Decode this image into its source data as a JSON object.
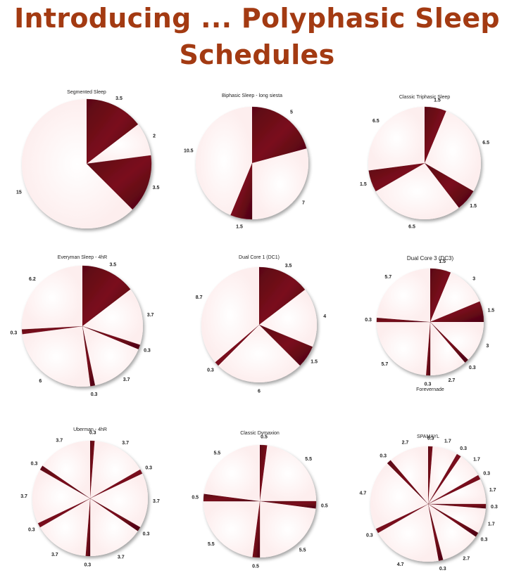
{
  "page": {
    "title": "Introducing ... Polyphasic Sleep Schedules"
  },
  "colors": {
    "title": "#a33a12",
    "sleep": "#7a0a1c",
    "awake": "#fdeeee"
  },
  "chart_data": [
    {
      "type": "pie",
      "title": "Segmented Sleep",
      "values": [
        3.5,
        2,
        3.5,
        15
      ],
      "labels": [
        "3.5",
        "2",
        "3.5",
        "15"
      ],
      "kinds": [
        "sleep",
        "awake",
        "sleep",
        "awake"
      ]
    },
    {
      "type": "pie",
      "title": "Biphasic Sleep - long siesta",
      "values": [
        5,
        7,
        1.5,
        10.5
      ],
      "labels": [
        "5",
        "7",
        "1.5",
        "10.5"
      ],
      "kinds": [
        "sleep",
        "awake",
        "sleep",
        "awake"
      ]
    },
    {
      "type": "pie",
      "title": "Classic Triphasic Sleep",
      "values": [
        1.5,
        6.5,
        1.5,
        6.5,
        1.5,
        6.5
      ],
      "labels": [
        "1.5",
        "6.5",
        "1.5",
        "6.5",
        "1.5",
        "6.5"
      ],
      "kinds": [
        "sleep",
        "awake",
        "sleep",
        "awake",
        "sleep",
        "awake"
      ]
    },
    {
      "type": "pie",
      "title": "Everyman Sleep - 4hR",
      "values": [
        3.5,
        3.7,
        0.3,
        3.7,
        0.3,
        6,
        0.3,
        6.2
      ],
      "labels": [
        "3.5",
        "3.7",
        "0.3",
        "3.7",
        "0.3",
        "6",
        "0.3",
        "6.2"
      ],
      "kinds": [
        "sleep",
        "awake",
        "sleep",
        "awake",
        "sleep",
        "awake",
        "sleep",
        "awake"
      ]
    },
    {
      "type": "pie",
      "title": "Dual Core 1 (DC1)",
      "values": [
        3.5,
        4,
        1.5,
        6,
        0.3,
        8.7
      ],
      "labels": [
        "3.5",
        "4",
        "1.5",
        "6",
        "0.3",
        "8.7"
      ],
      "kinds": [
        "sleep",
        "awake",
        "sleep",
        "awake",
        "sleep",
        "awake"
      ]
    },
    {
      "type": "pie",
      "title": "Dual Core 3 (DC3)",
      "note": "Forevernade",
      "values": [
        1.5,
        3,
        1.5,
        3,
        0.3,
        2.7,
        0.3,
        5.7,
        0.3,
        5.7
      ],
      "labels": [
        "1.5",
        "3",
        "1.5",
        "3",
        "0.3",
        "2.7",
        "0.3",
        "5.7",
        "0.3",
        "5.7"
      ],
      "kinds": [
        "sleep",
        "awake",
        "sleep",
        "awake",
        "sleep",
        "awake",
        "sleep",
        "awake",
        "sleep",
        "awake"
      ]
    },
    {
      "type": "pie",
      "title": "Uberman - 4hR",
      "values": [
        0.3,
        3.7,
        0.3,
        3.7,
        0.3,
        3.7,
        0.3,
        3.7,
        0.3,
        3.7,
        0.3,
        3.7
      ],
      "labels": [
        "0.3",
        "3.7",
        "0.3",
        "3.7",
        "0.3",
        "3.7",
        "0.3",
        "3.7",
        "0.3",
        "3.7",
        "0.3",
        "3.7"
      ],
      "kinds": [
        "sleep",
        "awake",
        "sleep",
        "awake",
        "sleep",
        "awake",
        "sleep",
        "awake",
        "sleep",
        "awake",
        "sleep",
        "awake"
      ]
    },
    {
      "type": "pie",
      "title": "Classic Dymaxion",
      "values": [
        0.5,
        5.5,
        0.5,
        5.5,
        0.5,
        5.5,
        0.5,
        5.5
      ],
      "labels": [
        "0.5",
        "5.5",
        "0.5",
        "5.5",
        "0.5",
        "5.5",
        "0.5",
        "5.5"
      ],
      "kinds": [
        "sleep",
        "awake",
        "sleep",
        "awake",
        "sleep",
        "awake",
        "sleep",
        "awake"
      ]
    },
    {
      "type": "pie",
      "title": "SPAMAYL",
      "values": [
        0.3,
        1.7,
        0.3,
        1.7,
        0.3,
        1.7,
        0.3,
        1.7,
        0.3,
        2.7,
        0.3,
        4.7,
        0.3,
        4.7,
        0.3,
        2.7
      ],
      "labels": [
        "0.3",
        "1.7",
        "0.3",
        "1.7",
        "0.3",
        "1.7",
        "0.3",
        "1.7",
        "0.3",
        "2.7",
        "0.3",
        "4.7",
        "0.3",
        "4.7",
        "0.3",
        "2.7"
      ],
      "kinds": [
        "sleep",
        "awake",
        "sleep",
        "awake",
        "sleep",
        "awake",
        "sleep",
        "awake",
        "sleep",
        "awake",
        "sleep",
        "awake",
        "sleep",
        "awake",
        "sleep",
        "awake"
      ]
    }
  ]
}
